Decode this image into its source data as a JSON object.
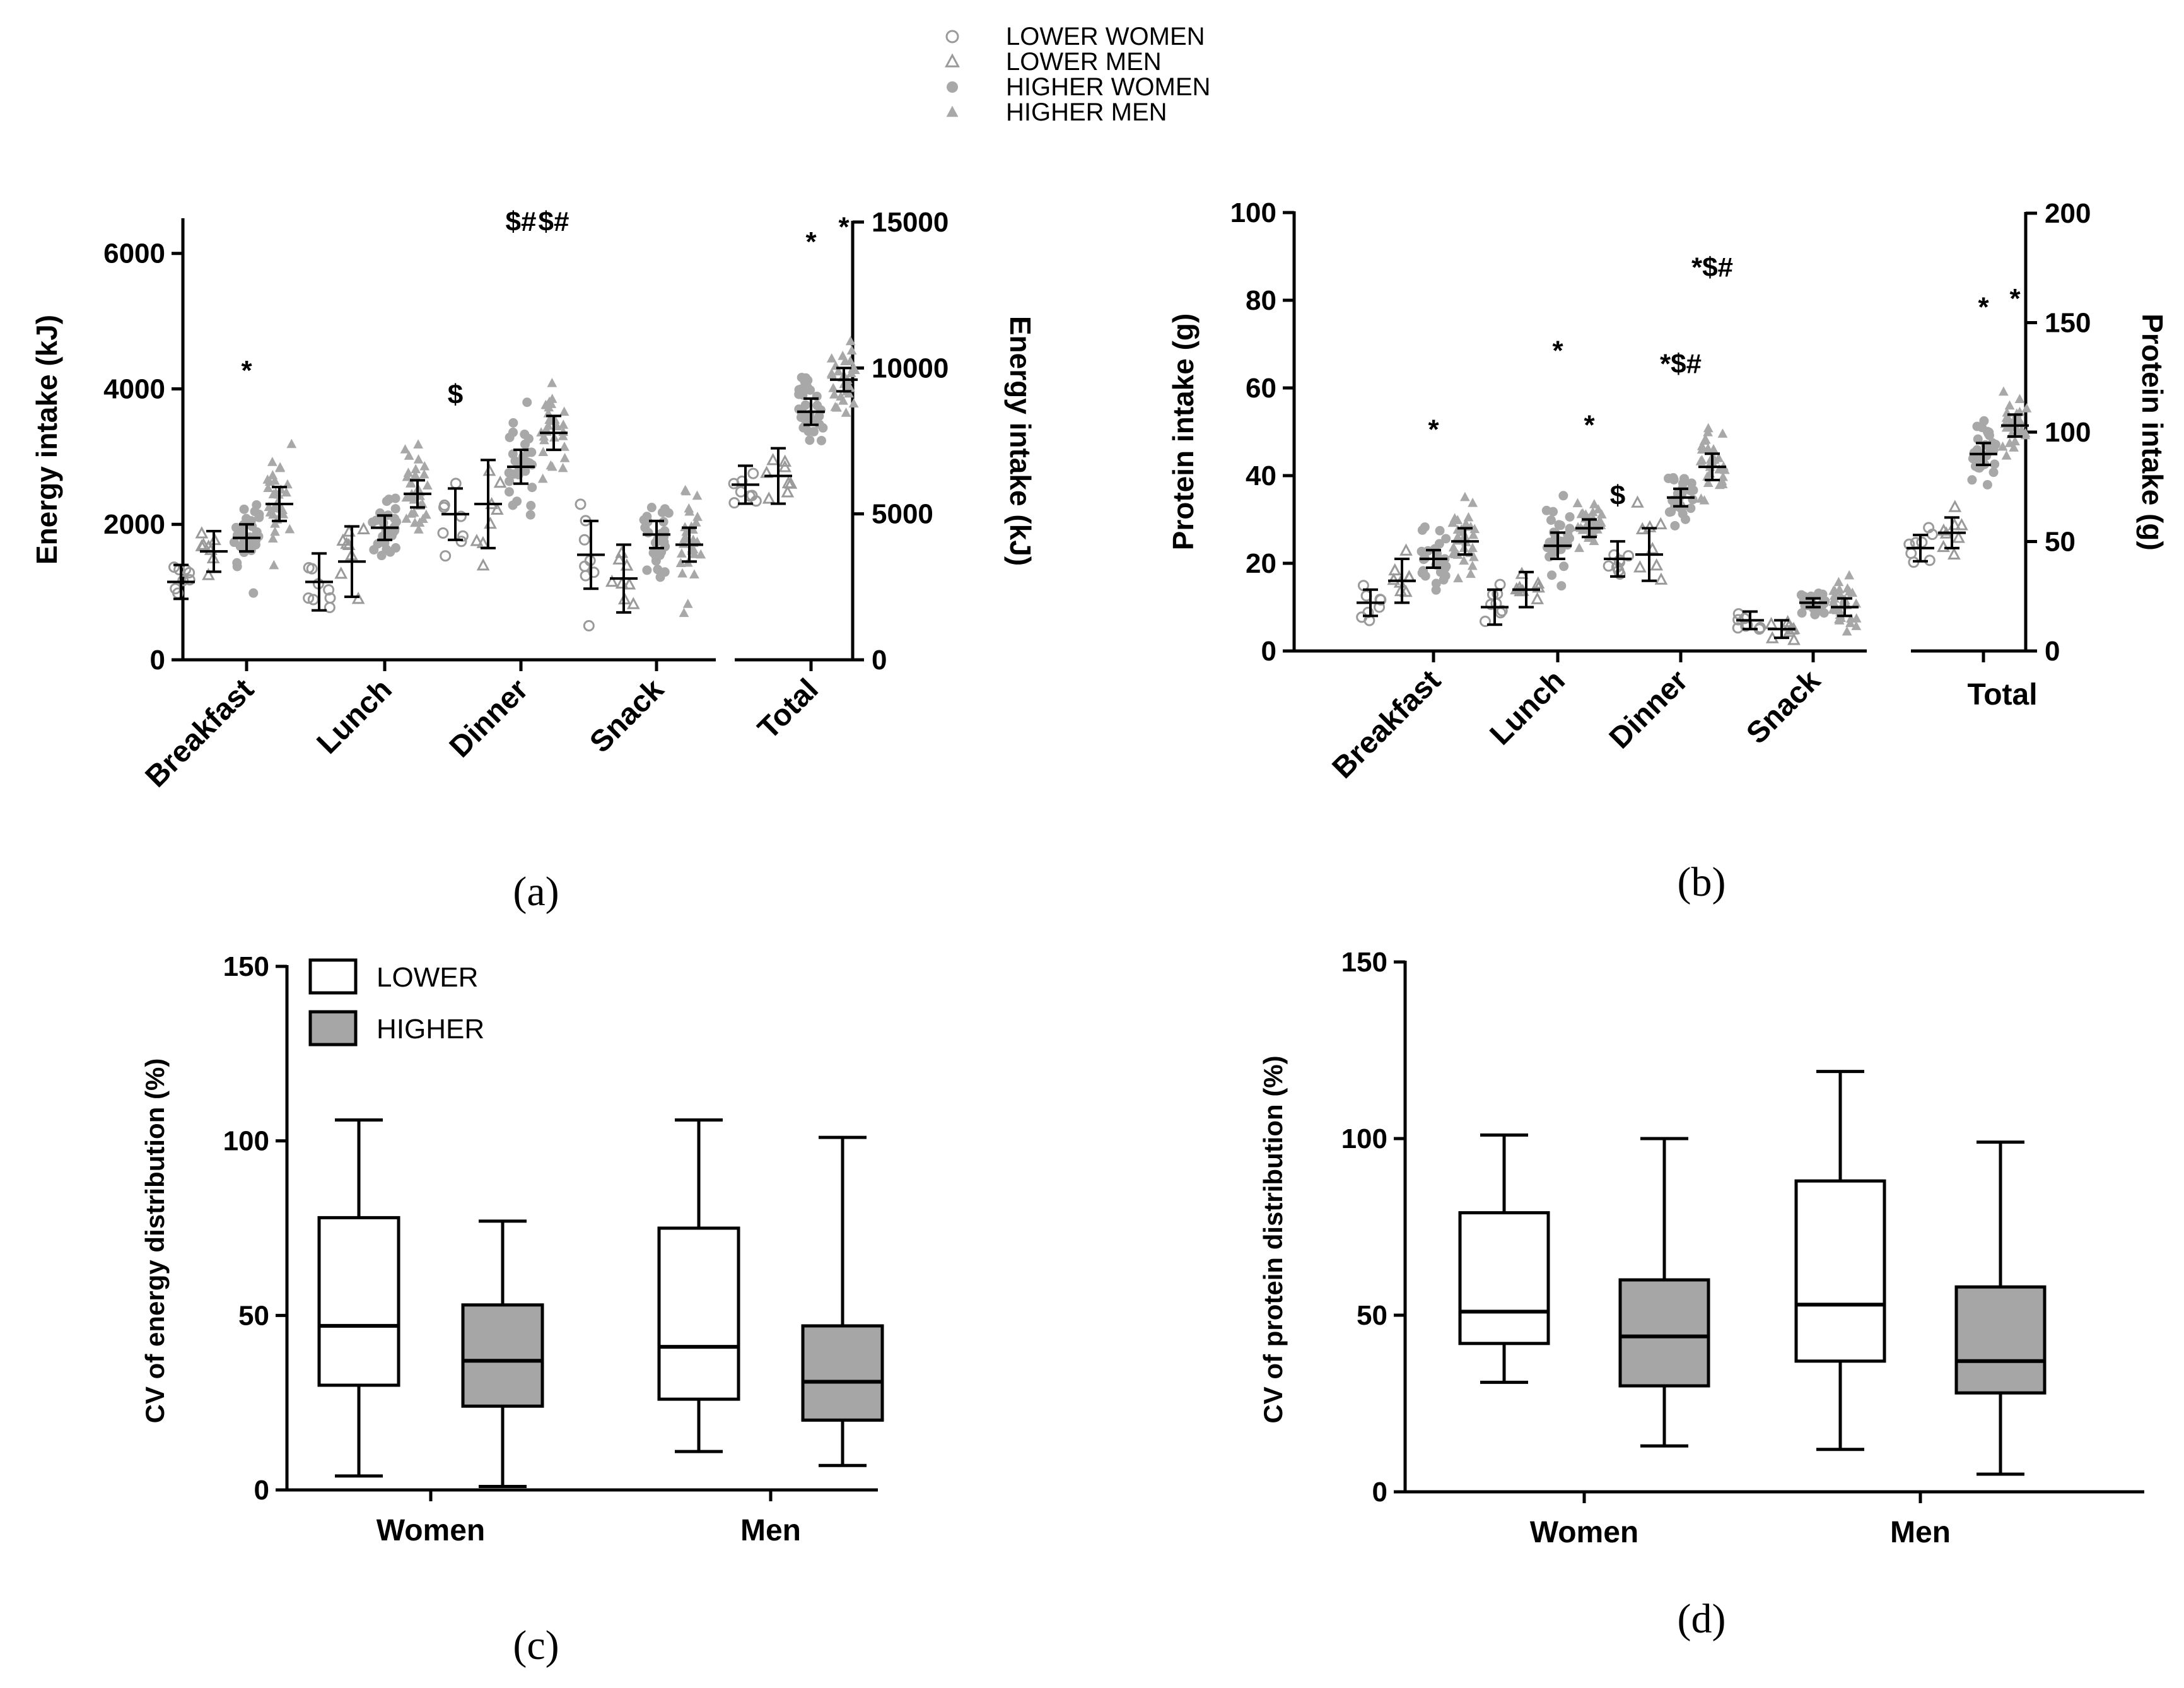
{
  "legend": {
    "items": [
      {
        "label": "LOWER WOMEN",
        "marker": "open-circle"
      },
      {
        "label": "LOWER MEN",
        "marker": "open-triangle"
      },
      {
        "label": "HIGHER WOMEN",
        "marker": "filled-circle"
      },
      {
        "label": "HIGHER MEN",
        "marker": "filled-triangle"
      }
    ]
  },
  "colors": {
    "axis": "#000000",
    "lower_marker": "#9a9a9a",
    "higher_marker": "#a8a8a8",
    "higher_box": "#a6a6a6"
  },
  "chart_data": [
    {
      "id": "a",
      "type": "scatter",
      "panel_label": "(a)",
      "ylabel": "Energy intake (kJ)",
      "ylabel_right": "Energy intake (kJ)",
      "ylim": [
        0,
        6500
      ],
      "yticks": [
        0,
        2000,
        4000,
        6000
      ],
      "ylim_right": [
        0,
        15000
      ],
      "yticks_right": [
        0,
        5000,
        10000,
        15000
      ],
      "categories": [
        "Breakfast",
        "Lunch",
        "Dinner",
        "Snack"
      ],
      "total_label": "Total",
      "series": [
        {
          "name": "LOWER WOMEN",
          "means": [
            1150,
            1150,
            2150,
            1550
          ],
          "errors": [
            250,
            420,
            380,
            500
          ],
          "total_mean": 6000,
          "total_error": 650
        },
        {
          "name": "LOWER MEN",
          "means": [
            1600,
            1450,
            2300,
            1200
          ],
          "errors": [
            300,
            520,
            650,
            500
          ],
          "total_mean": 6300,
          "total_error": 950
        },
        {
          "name": "HIGHER WOMEN",
          "means": [
            1800,
            1950,
            2850,
            1850
          ],
          "errors": [
            200,
            180,
            250,
            200
          ],
          "total_mean": 8500,
          "total_error": 450
        },
        {
          "name": "HIGHER MEN",
          "means": [
            2300,
            2450,
            3350,
            1700
          ],
          "errors": [
            250,
            200,
            250,
            250
          ],
          "total_mean": 9600,
          "total_error": 400
        }
      ],
      "annotations": [
        {
          "category": "Breakfast",
          "series": "HIGHER WOMEN",
          "text": "*",
          "y": 4300
        },
        {
          "category": "Dinner",
          "series": "LOWER WOMEN",
          "text": "$",
          "y": 3950
        },
        {
          "category": "Dinner",
          "series": "HIGHER WOMEN",
          "text": "$#",
          "y": 6500
        },
        {
          "category": "Dinner",
          "series": "HIGHER MEN",
          "text": "$#",
          "y": 6500
        },
        {
          "category": "Total",
          "series": "HIGHER WOMEN",
          "text": "*",
          "y": 14400
        },
        {
          "category": "Total",
          "series": "HIGHER MEN",
          "text": "*",
          "y": 14900
        }
      ]
    },
    {
      "id": "b",
      "type": "scatter",
      "panel_label": "(b)",
      "ylabel": "Protein intake (g)",
      "ylabel_right": "Protein intake (g)",
      "ylim": [
        0,
        100
      ],
      "yticks": [
        0,
        20,
        40,
        60,
        80,
        100
      ],
      "ylim_right": [
        0,
        200
      ],
      "yticks_right": [
        0,
        50,
        100,
        150,
        200
      ],
      "categories": [
        "Breakfast",
        "Lunch",
        "Dinner",
        "Snack"
      ],
      "total_label": "Total",
      "series": [
        {
          "name": "LOWER WOMEN",
          "means": [
            11,
            10,
            21,
            7
          ],
          "errors": [
            3,
            4,
            4,
            2
          ],
          "total_mean": 47,
          "total_error": 6
        },
        {
          "name": "LOWER MEN",
          "means": [
            16,
            14,
            22,
            5
          ],
          "errors": [
            5,
            4,
            6,
            2
          ],
          "total_mean": 54,
          "total_error": 7
        },
        {
          "name": "HIGHER WOMEN",
          "means": [
            21,
            24,
            35,
            11
          ],
          "errors": [
            2,
            3,
            2,
            1
          ],
          "total_mean": 90,
          "total_error": 5
        },
        {
          "name": "HIGHER MEN",
          "means": [
            25,
            28,
            42,
            10
          ],
          "errors": [
            3,
            2,
            3,
            2
          ],
          "total_mean": 103,
          "total_error": 5
        }
      ],
      "annotations": [
        {
          "category": "Breakfast",
          "series": "HIGHER WOMEN",
          "text": "*",
          "y": 51
        },
        {
          "category": "Lunch",
          "series": "HIGHER WOMEN",
          "text": "*",
          "y": 69
        },
        {
          "category": "Lunch",
          "series": "HIGHER MEN",
          "text": "*",
          "y": 52
        },
        {
          "category": "Dinner",
          "series": "LOWER WOMEN",
          "text": "$",
          "y": 36
        },
        {
          "category": "Dinner",
          "series": "HIGHER WOMEN",
          "text": "*$#",
          "y": 66
        },
        {
          "category": "Dinner",
          "series": "HIGHER MEN",
          "text": "*$#",
          "y": 88
        },
        {
          "category": "Total",
          "series": "HIGHER WOMEN",
          "text": "*",
          "y": 158
        },
        {
          "category": "Total",
          "series": "HIGHER MEN",
          "text": "*",
          "y": 162
        }
      ]
    },
    {
      "id": "c",
      "type": "box",
      "panel_label": "(c)",
      "ylabel": "CV of energy distribution (%)",
      "ylim": [
        0,
        150
      ],
      "yticks": [
        0,
        50,
        100,
        150
      ],
      "categories": [
        "Women",
        "Men"
      ],
      "legend": [
        {
          "label": "LOWER",
          "fill": "#ffffff"
        },
        {
          "label": "HIGHER",
          "fill": "#a6a6a6"
        }
      ],
      "series": [
        {
          "name": "LOWER",
          "boxes": [
            {
              "min": 4,
              "q1": 30,
              "median": 47,
              "q3": 78,
              "max": 106
            },
            {
              "min": 11,
              "q1": 26,
              "median": 41,
              "q3": 75,
              "max": 106
            }
          ]
        },
        {
          "name": "HIGHER",
          "boxes": [
            {
              "min": 1,
              "q1": 24,
              "median": 37,
              "q3": 53,
              "max": 77
            },
            {
              "min": 7,
              "q1": 20,
              "median": 31,
              "q3": 47,
              "max": 101
            }
          ]
        }
      ]
    },
    {
      "id": "d",
      "type": "box",
      "panel_label": "(d)",
      "ylabel": "CV of protein distribution (%)",
      "ylim": [
        0,
        150
      ],
      "yticks": [
        0,
        50,
        100,
        150
      ],
      "categories": [
        "Women",
        "Men"
      ],
      "series": [
        {
          "name": "LOWER",
          "boxes": [
            {
              "min": 31,
              "q1": 42,
              "median": 51,
              "q3": 79,
              "max": 101
            },
            {
              "min": 12,
              "q1": 37,
              "median": 53,
              "q3": 88,
              "max": 119
            }
          ]
        },
        {
          "name": "HIGHER",
          "boxes": [
            {
              "min": 13,
              "q1": 30,
              "median": 44,
              "q3": 60,
              "max": 100
            },
            {
              "min": 5,
              "q1": 28,
              "median": 37,
              "q3": 58,
              "max": 99
            }
          ]
        }
      ]
    }
  ]
}
